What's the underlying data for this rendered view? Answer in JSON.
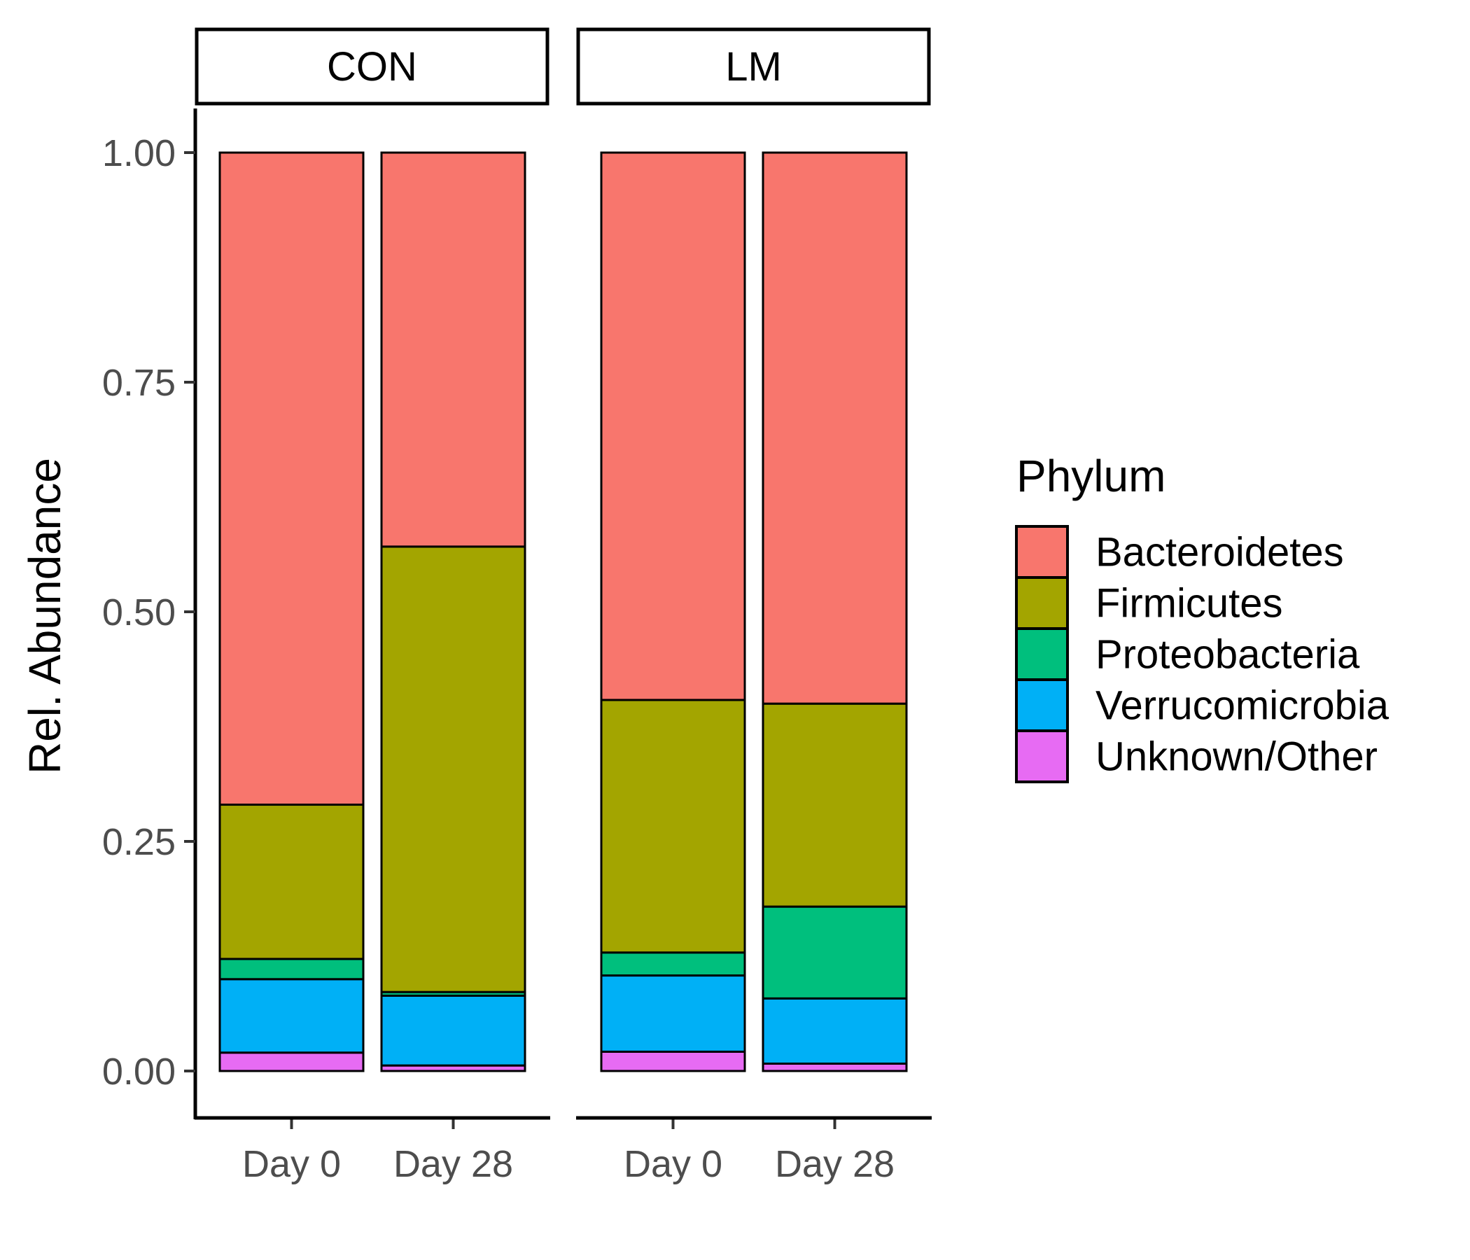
{
  "chart_data": {
    "type": "bar",
    "stacked": true,
    "ylabel": "Rel. Abundance",
    "ylim": [
      0,
      1
    ],
    "yticks": [
      "0.00",
      "0.25",
      "0.50",
      "0.75",
      "1.00"
    ],
    "categories": [
      "Day 0",
      "Day 28"
    ],
    "panels": [
      {
        "label": "CON",
        "values": {
          "Day 0": {
            "Unknown/Other": 0.02,
            "Verrucomicrobia": 0.08,
            "Proteobacteria": 0.022,
            "Firmicutes": 0.168,
            "Bacteroidetes": 0.71
          },
          "Day 28": {
            "Unknown/Other": 0.006,
            "Verrucomicrobia": 0.076,
            "Proteobacteria": 0.004,
            "Firmicutes": 0.485,
            "Bacteroidetes": 0.429
          }
        }
      },
      {
        "label": "LM",
        "values": {
          "Day 0": {
            "Unknown/Other": 0.021,
            "Verrucomicrobia": 0.083,
            "Proteobacteria": 0.025,
            "Firmicutes": 0.275,
            "Bacteroidetes": 0.596
          },
          "Day 28": {
            "Unknown/Other": 0.008,
            "Verrucomicrobia": 0.071,
            "Proteobacteria": 0.1,
            "Firmicutes": 0.221,
            "Bacteroidetes": 0.6
          }
        }
      }
    ],
    "legend": {
      "title": "Phylum",
      "placement": "right",
      "items": [
        {
          "name": "Bacteroidetes",
          "color": "#F8766D"
        },
        {
          "name": "Firmicutes",
          "color": "#A3A500"
        },
        {
          "name": "Proteobacteria",
          "color": "#00BF7D"
        },
        {
          "name": "Verrucomicrobia",
          "color": "#00B0F6"
        },
        {
          "name": "Unknown/Other",
          "color": "#E76BF3"
        }
      ]
    },
    "grid": false
  }
}
